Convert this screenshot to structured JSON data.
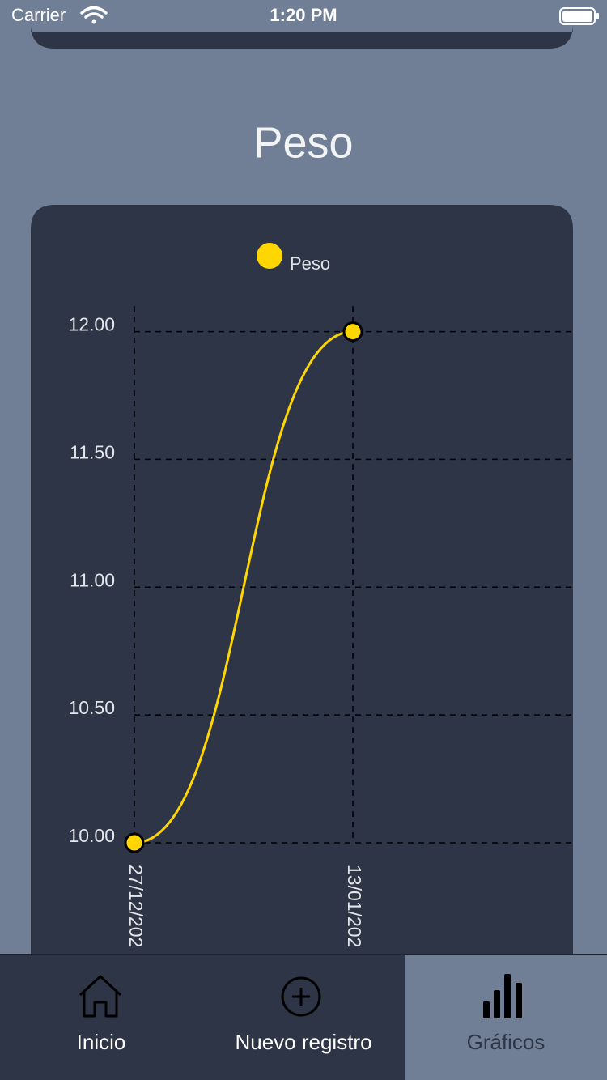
{
  "status_bar": {
    "carrier": "Carrier",
    "time": "1:20 PM"
  },
  "page_title": "Peso",
  "chart_data": {
    "type": "line",
    "categories": [
      "27/12/202",
      "13/01/202"
    ],
    "series": [
      {
        "name": "Peso",
        "color": "#ffd600",
        "values": [
          10,
          12
        ]
      }
    ],
    "ylim": [
      10,
      12.1
    ],
    "yticks": [
      {
        "value": 10,
        "label": "10.00"
      },
      {
        "value": 10.5,
        "label": "10.50"
      },
      {
        "value": 11,
        "label": "11.00"
      },
      {
        "value": 11.5,
        "label": "11.50"
      },
      {
        "value": 12,
        "label": "12.00"
      }
    ],
    "grid": true,
    "legend": "top"
  },
  "tabs": [
    {
      "label": "Inicio"
    },
    {
      "label": "Nuevo registro"
    },
    {
      "label": "Gráficos"
    }
  ],
  "selected_tab": 2
}
